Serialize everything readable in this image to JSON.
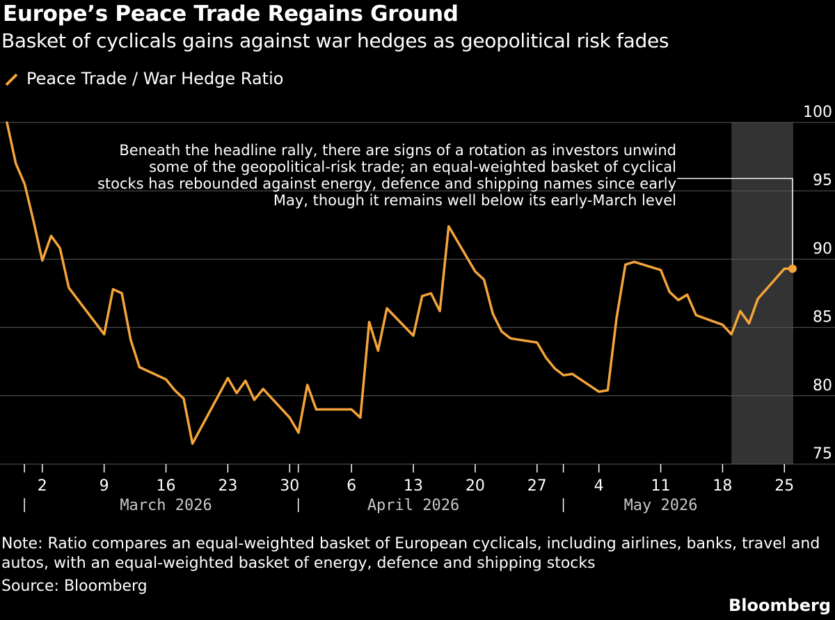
{
  "title": "Europe’s Peace Trade Regains Ground",
  "subtitle": "Basket of cyclicals gains against war hedges as geopolitical risk fades",
  "legend_icon": "line-swatch-icon",
  "note_line1": "Note: Ratio compares an equal-weighted basket of European cyclicals, including airlines, banks, travel and",
  "note_line2": "autos, with an equal-weighted basket of energy, defence and shipping stocks",
  "source": "Source: Bloomberg",
  "brand": "Bloomberg",
  "colors": {
    "background": "#000000",
    "line": "#f5a53a",
    "grid": "#5a5a5a",
    "shade": "#333333",
    "text": "#ffffff"
  },
  "chart_data": {
    "type": "line",
    "title": "",
    "xlabel": "",
    "ylabel": "",
    "ylim": [
      75,
      100
    ],
    "y_ticks": [
      75,
      80,
      85,
      90,
      95,
      100
    ],
    "y_axis_side": "right",
    "grid": "horizontal",
    "legend_position": "top-left",
    "x_range": [
      "2026-02-26",
      "2026-05-26"
    ],
    "x_tick_labels": [
      {
        "date": "2026-03-02",
        "label": "2"
      },
      {
        "date": "2026-03-09",
        "label": "9"
      },
      {
        "date": "2026-03-16",
        "label": "16"
      },
      {
        "date": "2026-03-23",
        "label": "23"
      },
      {
        "date": "2026-03-30",
        "label": "30"
      },
      {
        "date": "2026-04-06",
        "label": "6"
      },
      {
        "date": "2026-04-13",
        "label": "13"
      },
      {
        "date": "2026-04-20",
        "label": "20"
      },
      {
        "date": "2026-04-27",
        "label": "27"
      },
      {
        "date": "2026-05-04",
        "label": "4"
      },
      {
        "date": "2026-05-11",
        "label": "11"
      },
      {
        "date": "2026-05-18",
        "label": "18"
      },
      {
        "date": "2026-05-25",
        "label": "25"
      }
    ],
    "month_labels": [
      {
        "date": "2026-03-16",
        "label": "March 2026"
      },
      {
        "date": "2026-04-13",
        "label": "April 2026"
      },
      {
        "date": "2026-05-11",
        "label": "May 2026"
      }
    ],
    "month_boundaries": [
      "2026-03-01",
      "2026-04-01",
      "2026-05-01"
    ],
    "shaded_region": {
      "from": "2026-05-19",
      "to": "2026-05-26"
    },
    "series": [
      {
        "name": "Peace Trade / War Hedge Ratio",
        "points": [
          [
            "2026-02-26",
            100.0
          ],
          [
            "2026-02-27",
            97.0
          ],
          [
            "2026-02-28",
            95.5
          ],
          [
            "2026-03-01",
            92.8
          ],
          [
            "2026-03-02",
            89.9
          ],
          [
            "2026-03-03",
            91.7
          ],
          [
            "2026-03-04",
            90.8
          ],
          [
            "2026-03-05",
            87.9
          ],
          [
            "2026-03-09",
            84.5
          ],
          [
            "2026-03-10",
            87.8
          ],
          [
            "2026-03-11",
            87.5
          ],
          [
            "2026-03-12",
            84.1
          ],
          [
            "2026-03-13",
            82.1
          ],
          [
            "2026-03-16",
            81.2
          ],
          [
            "2026-03-17",
            80.4
          ],
          [
            "2026-03-18",
            79.8
          ],
          [
            "2026-03-19",
            76.5
          ],
          [
            "2026-03-23",
            81.3
          ],
          [
            "2026-03-24",
            80.2
          ],
          [
            "2026-03-25",
            81.1
          ],
          [
            "2026-03-26",
            79.7
          ],
          [
            "2026-03-27",
            80.5
          ],
          [
            "2026-03-30",
            78.4
          ],
          [
            "2026-03-31",
            77.3
          ],
          [
            "2026-04-01",
            80.8
          ],
          [
            "2026-04-02",
            79.0
          ],
          [
            "2026-04-06",
            79.0
          ],
          [
            "2026-04-07",
            78.4
          ],
          [
            "2026-04-08",
            85.4
          ],
          [
            "2026-04-09",
            83.3
          ],
          [
            "2026-04-10",
            86.4
          ],
          [
            "2026-04-13",
            84.4
          ],
          [
            "2026-04-14",
            87.3
          ],
          [
            "2026-04-15",
            87.5
          ],
          [
            "2026-04-16",
            86.2
          ],
          [
            "2026-04-17",
            92.4
          ],
          [
            "2026-04-20",
            89.1
          ],
          [
            "2026-04-21",
            88.5
          ],
          [
            "2026-04-22",
            86.0
          ],
          [
            "2026-04-23",
            84.7
          ],
          [
            "2026-04-24",
            84.2
          ],
          [
            "2026-04-27",
            83.9
          ],
          [
            "2026-04-28",
            82.8
          ],
          [
            "2026-04-29",
            82.0
          ],
          [
            "2026-04-30",
            81.5
          ],
          [
            "2026-05-01",
            81.6
          ],
          [
            "2026-05-04",
            80.3
          ],
          [
            "2026-05-05",
            80.4
          ],
          [
            "2026-05-06",
            85.7
          ],
          [
            "2026-05-07",
            89.6
          ],
          [
            "2026-05-08",
            89.8
          ],
          [
            "2026-05-11",
            89.2
          ],
          [
            "2026-05-12",
            87.6
          ],
          [
            "2026-05-13",
            87.0
          ],
          [
            "2026-05-14",
            87.4
          ],
          [
            "2026-05-15",
            85.9
          ],
          [
            "2026-05-18",
            85.2
          ],
          [
            "2026-05-19",
            84.5
          ],
          [
            "2026-05-20",
            86.2
          ],
          [
            "2026-05-21",
            85.3
          ],
          [
            "2026-05-22",
            87.1
          ],
          [
            "2026-05-25",
            89.3
          ],
          [
            "2026-05-26",
            89.3
          ]
        ]
      }
    ],
    "annotation": {
      "lines": [
        "Beneath the headline rally, there are signs of a rotation as investors unwind",
        "some of the geopolitical-risk trade; an equal-weighted basket of cyclical",
        "stocks has rebounded against energy, defence and shipping names since early",
        "May, though it remains well below its early-March level"
      ],
      "points_to": {
        "date": "2026-05-26",
        "value": 89.3
      },
      "leader_value": 95.9
    }
  }
}
